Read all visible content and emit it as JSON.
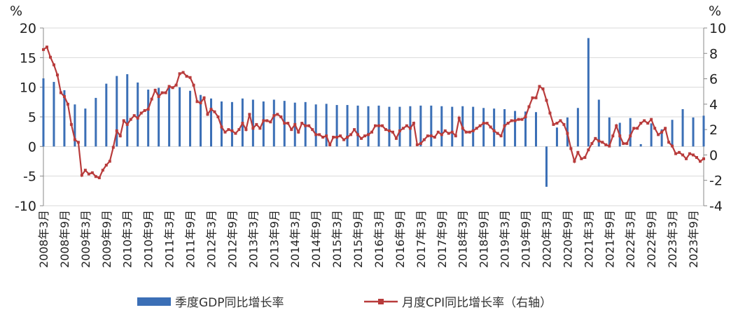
{
  "chart_data": {
    "type": "bar-line",
    "y_unit": "%",
    "y2_unit": "%",
    "categories": [
      "2008年3月",
      null,
      null,
      null,
      null,
      null,
      "2008年9月",
      null,
      null,
      null,
      null,
      null,
      "2009年3月",
      null,
      null,
      null,
      null,
      null,
      "2009年9月",
      null,
      null,
      null,
      null,
      null,
      "2010年3月",
      null,
      null,
      null,
      null,
      null,
      "2010年9月",
      null,
      null,
      null,
      null,
      null,
      "2011年3月",
      null,
      null,
      null,
      null,
      null,
      "2011年9月",
      null,
      null,
      null,
      null,
      null,
      "2012年3月",
      null,
      null,
      null,
      null,
      null,
      "2012年9月",
      null,
      null,
      null,
      null,
      null,
      "2013年3月",
      null,
      null,
      null,
      null,
      null,
      "2013年9月",
      null,
      null,
      null,
      null,
      null,
      "2014年3月",
      null,
      null,
      null,
      null,
      null,
      "2014年9月",
      null,
      null,
      null,
      null,
      null,
      "2015年3月",
      null,
      null,
      null,
      null,
      null,
      "2015年9月",
      null,
      null,
      null,
      null,
      null,
      "2016年3月",
      null,
      null,
      null,
      null,
      null,
      "2016年9月",
      null,
      null,
      null,
      null,
      null,
      "2017年3月",
      null,
      null,
      null,
      null,
      null,
      "2017年9月",
      null,
      null,
      null,
      null,
      null,
      "2018年3月",
      null,
      null,
      null,
      null,
      null,
      "2018年9月",
      null,
      null,
      null,
      null,
      null,
      "2019年3月",
      null,
      null,
      null,
      null,
      null,
      "2019年9月",
      null,
      null,
      null,
      null,
      null,
      "2020年3月",
      null,
      null,
      null,
      null,
      null,
      "2020年9月",
      null,
      null,
      null,
      null,
      null,
      "2021年3月",
      null,
      null,
      null,
      null,
      null,
      "2021年9月",
      null,
      null,
      null,
      null,
      null,
      "2022年3月",
      null,
      null,
      null,
      null,
      null,
      "2022年9月",
      null,
      null,
      null,
      null,
      null,
      "2023年3月",
      null,
      null,
      null,
      null,
      null,
      "2023年9月",
      null,
      null,
      null
    ],
    "series": [
      {
        "name": "季度GDP同比增长率",
        "kind": "bar",
        "axis": "y",
        "color": "#3b6fb6",
        "values": [
          11.5,
          null,
          null,
          10.9,
          null,
          null,
          9.5,
          null,
          null,
          7.1,
          null,
          null,
          6.4,
          null,
          null,
          8.2,
          null,
          null,
          10.6,
          null,
          null,
          11.9,
          null,
          null,
          12.2,
          null,
          null,
          10.8,
          null,
          null,
          9.6,
          null,
          null,
          9.9,
          null,
          null,
          10.2,
          null,
          null,
          10.0,
          null,
          null,
          9.4,
          null,
          null,
          8.7,
          null,
          null,
          8.1,
          null,
          null,
          7.6,
          null,
          null,
          7.5,
          null,
          null,
          8.1,
          null,
          null,
          7.9,
          null,
          null,
          7.6,
          null,
          null,
          7.9,
          null,
          null,
          7.7,
          null,
          null,
          7.4,
          null,
          null,
          7.5,
          null,
          null,
          7.1,
          null,
          null,
          7.2,
          null,
          null,
          7.0,
          null,
          null,
          7.0,
          null,
          null,
          6.9,
          null,
          null,
          6.8,
          null,
          null,
          6.9,
          null,
          null,
          6.7,
          null,
          null,
          6.7,
          null,
          null,
          6.8,
          null,
          null,
          6.9,
          null,
          null,
          6.9,
          null,
          null,
          6.8,
          null,
          null,
          6.7,
          null,
          null,
          6.8,
          null,
          null,
          6.7,
          null,
          null,
          6.5,
          null,
          null,
          6.4,
          null,
          null,
          6.3,
          null,
          null,
          6.0,
          null,
          null,
          5.9,
          null,
          null,
          5.8,
          null,
          null,
          -6.8,
          null,
          null,
          3.2,
          null,
          null,
          4.9,
          null,
          null,
          6.5,
          null,
          null,
          18.3,
          null,
          null,
          7.9,
          null,
          null,
          4.9,
          null,
          null,
          4.0,
          null,
          null,
          4.8,
          null,
          null,
          0.4,
          null,
          null,
          3.9,
          null,
          null,
          2.9,
          null,
          null,
          4.5,
          null,
          null,
          6.3,
          null,
          null,
          4.9,
          null,
          null,
          5.2
        ]
      },
      {
        "name": "月度CPI同比增长率（右轴）",
        "kind": "line",
        "axis": "y2",
        "color": "#b83b3b",
        "values": [
          8.3,
          8.5,
          7.7,
          7.1,
          6.3,
          4.9,
          4.6,
          4.0,
          2.4,
          1.2,
          1.0,
          -1.6,
          -1.2,
          -1.5,
          -1.4,
          -1.7,
          -1.8,
          -1.2,
          -0.8,
          -0.5,
          0.6,
          1.9,
          1.5,
          2.7,
          2.4,
          2.8,
          3.1,
          2.9,
          3.3,
          3.5,
          3.6,
          4.4,
          5.1,
          4.6,
          4.9,
          4.9,
          5.4,
          5.3,
          5.5,
          6.4,
          6.5,
          6.2,
          6.1,
          5.5,
          4.2,
          4.1,
          4.5,
          3.2,
          3.6,
          3.4,
          3.0,
          2.2,
          1.8,
          2.0,
          1.9,
          1.7,
          2.0,
          2.5,
          2.0,
          3.2,
          2.1,
          2.4,
          2.1,
          2.7,
          2.7,
          2.6,
          3.1,
          3.2,
          3.0,
          2.5,
          2.5,
          2.0,
          2.4,
          1.8,
          2.5,
          2.3,
          2.3,
          2.0,
          1.6,
          1.6,
          1.4,
          1.5,
          0.8,
          1.4,
          1.4,
          1.5,
          1.2,
          1.4,
          1.6,
          2.0,
          1.6,
          1.3,
          1.5,
          1.6,
          1.8,
          2.3,
          2.3,
          2.3,
          2.0,
          1.9,
          1.8,
          1.3,
          1.9,
          2.1,
          2.3,
          2.1,
          2.5,
          0.8,
          0.9,
          1.2,
          1.5,
          1.5,
          1.4,
          1.8,
          1.6,
          1.9,
          1.7,
          1.8,
          1.5,
          2.9,
          2.1,
          1.8,
          1.8,
          1.9,
          2.1,
          2.3,
          2.5,
          2.5,
          2.2,
          1.9,
          1.7,
          1.5,
          2.3,
          2.5,
          2.7,
          2.7,
          2.8,
          2.8,
          3.0,
          3.8,
          4.5,
          4.5,
          5.4,
          5.2,
          4.3,
          3.3,
          2.4,
          2.5,
          2.7,
          2.4,
          1.7,
          0.5,
          -0.5,
          0.2,
          -0.3,
          -0.2,
          0.4,
          0.9,
          1.3,
          1.1,
          1.0,
          0.8,
          0.7,
          1.5,
          2.3,
          1.5,
          0.9,
          0.9,
          1.5,
          2.1,
          2.1,
          2.5,
          2.7,
          2.5,
          2.8,
          2.1,
          1.6,
          1.8,
          2.1,
          1.0,
          0.7,
          0.1,
          0.2,
          0.0,
          -0.3,
          0.1,
          0.0,
          -0.2,
          -0.5,
          -0.3
        ]
      }
    ],
    "ylim": [
      -10,
      20
    ],
    "yticks": [
      -10,
      -5,
      0,
      5,
      10,
      15,
      20
    ],
    "y2lim": [
      -4,
      10
    ],
    "y2ticks": [
      -4,
      -2,
      0,
      2,
      4,
      6,
      8,
      10
    ],
    "grid": true,
    "legend": "bottom"
  }
}
